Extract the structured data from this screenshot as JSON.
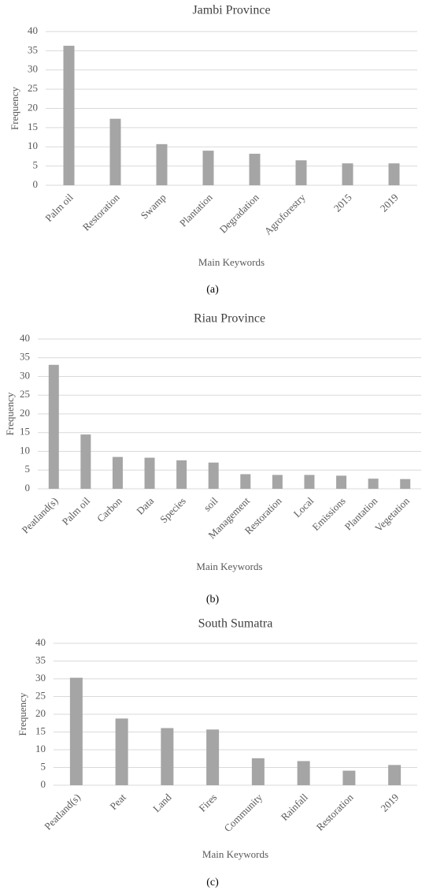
{
  "chart_data": [
    {
      "type": "bar",
      "title": "Jambi Province",
      "x_label": "Main Keywords",
      "y_label": "Frequency",
      "caption": "(a)",
      "categories": [
        "Palm oil",
        "Restoration",
        "Swamp",
        "Plantation",
        "Degradation",
        "Agroforestry",
        "2015",
        "2019"
      ],
      "values": [
        36.3,
        17.3,
        10.7,
        9.0,
        8.2,
        6.5,
        5.7,
        5.7
      ],
      "color": "#a5a5a5",
      "ylim": [
        0,
        40
      ],
      "yticks": [
        0,
        5,
        10,
        15,
        20,
        25,
        30,
        35,
        40
      ],
      "grid": true
    },
    {
      "type": "bar",
      "title": "Riau Province",
      "x_label": "Main Keywords",
      "y_label": "Frequency",
      "caption": "(b)",
      "categories": [
        "Peatland(s)",
        "Palm oil",
        "Carbon",
        "Data",
        "Species",
        "soil",
        "Management",
        "Restoration",
        "Local",
        "Emissions",
        "Plantation",
        "Vegetation"
      ],
      "values": [
        33.1,
        14.5,
        8.5,
        8.3,
        7.6,
        7.0,
        3.9,
        3.7,
        3.7,
        3.5,
        2.7,
        2.6
      ],
      "color": "#a5a5a5",
      "ylim": [
        0,
        40
      ],
      "yticks": [
        0,
        5,
        10,
        15,
        20,
        25,
        30,
        35,
        40
      ],
      "grid": true
    },
    {
      "type": "bar",
      "title": "South Sumatra",
      "x_label": "Main Keywords",
      "y_label": "Frequency",
      "caption": "(c)",
      "categories": [
        "Peatland(s)",
        "Peat",
        "Land",
        "Fires",
        "Community",
        "Rainfall",
        "Restoration",
        "2019"
      ],
      "values": [
        30.3,
        18.8,
        16.1,
        15.7,
        7.6,
        6.8,
        4.1,
        5.7
      ],
      "color": "#a5a5a5",
      "ylim": [
        0,
        40
      ],
      "yticks": [
        0,
        5,
        10,
        15,
        20,
        25,
        30,
        35,
        40
      ],
      "grid": true
    }
  ]
}
